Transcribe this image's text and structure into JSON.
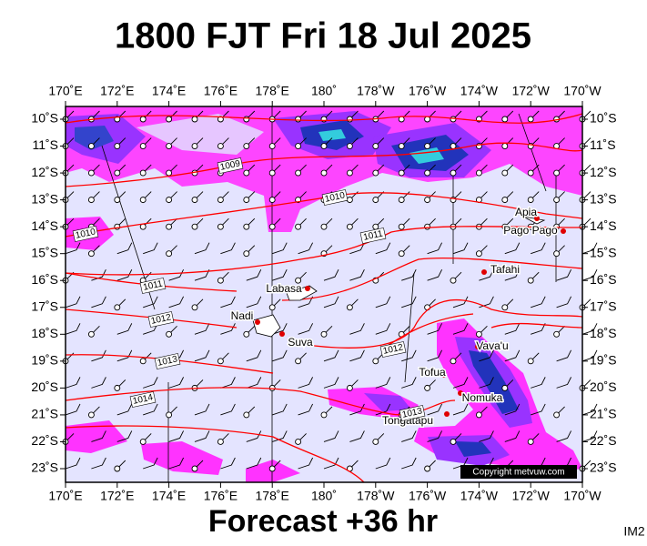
{
  "title": "1800 FJT Fri 18 Jul 2025",
  "footer": "Forecast +36 hr",
  "image_id": "IM2",
  "map": {
    "longitude_labels": [
      "170˚E",
      "172˚E",
      "174˚E",
      "176˚E",
      "178˚E",
      "180˚",
      "178˚W",
      "176˚W",
      "174˚W",
      "172˚W",
      "170˚W"
    ],
    "latitude_labels": [
      "10˚S",
      "11˚S",
      "12˚S",
      "13˚S",
      "14˚S",
      "15˚S",
      "16˚S",
      "17˚S",
      "18˚S",
      "19˚S",
      "20˚S",
      "21˚S",
      "22˚S",
      "23˚S"
    ],
    "places": [
      {
        "label": "Apia"
      },
      {
        "label": "Pago Pago"
      },
      {
        "label": "Tafahi"
      },
      {
        "label": "Labasa"
      },
      {
        "label": "Nadi"
      },
      {
        "label": "Suva"
      },
      {
        "label": "Vava'u"
      },
      {
        "label": "Tofua"
      },
      {
        "label": "Nomuka"
      },
      {
        "label": "Tongatapu"
      }
    ],
    "isobars": [
      {
        "label": "1009"
      },
      {
        "label": "1010"
      },
      {
        "label": "1010"
      },
      {
        "label": "1011"
      },
      {
        "label": "1011"
      },
      {
        "label": "1012"
      },
      {
        "label": "1012"
      },
      {
        "label": "1013"
      },
      {
        "label": "1013"
      },
      {
        "label": "1014"
      }
    ],
    "copyright": "Copyright metvuw.com"
  }
}
